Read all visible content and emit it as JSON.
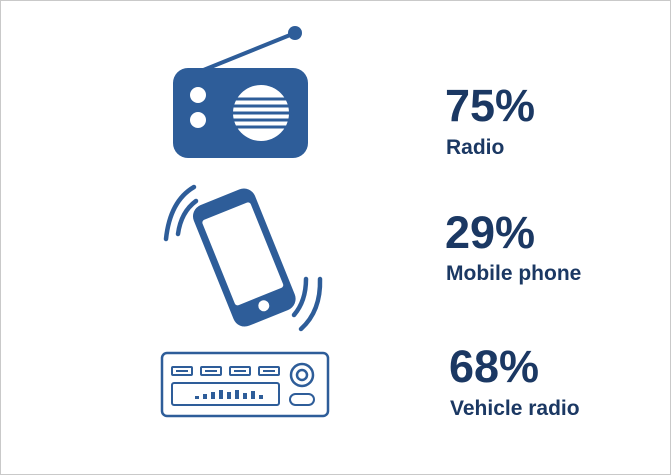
{
  "colors": {
    "icon_blue": "#2e5d99",
    "text_navy": "#1b3863",
    "border": "#c9c9c9"
  },
  "stats": [
    {
      "icon": "radio-icon",
      "value": "75%",
      "label": "Radio"
    },
    {
      "icon": "mobile-phone-icon",
      "value": "29%",
      "label": "Mobile phone"
    },
    {
      "icon": "vehicle-radio-icon",
      "value": "68%",
      "label": "Vehicle radio"
    }
  ]
}
